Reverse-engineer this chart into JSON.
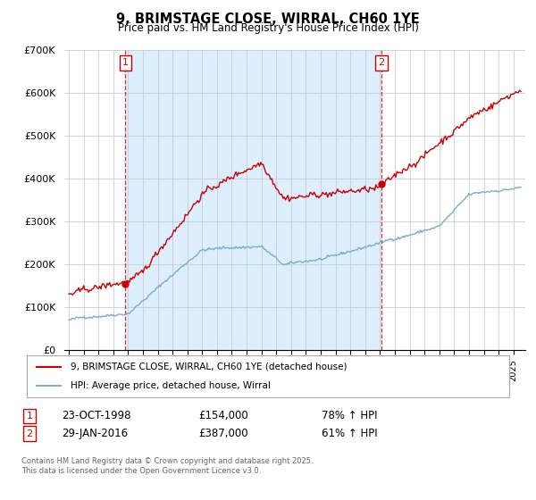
{
  "title": "9, BRIMSTAGE CLOSE, WIRRAL, CH60 1YE",
  "subtitle": "Price paid vs. HM Land Registry's House Price Index (HPI)",
  "red_label": "9, BRIMSTAGE CLOSE, WIRRAL, CH60 1YE (detached house)",
  "blue_label": "HPI: Average price, detached house, Wirral",
  "footnote": "Contains HM Land Registry data © Crown copyright and database right 2025.\nThis data is licensed under the Open Government Licence v3.0.",
  "transaction1_date": "23-OCT-1998",
  "transaction1_price": "£154,000",
  "transaction1_hpi": "78% ↑ HPI",
  "transaction1_year": 1998.82,
  "transaction2_date": "29-JAN-2016",
  "transaction2_price": "£387,000",
  "transaction2_hpi": "61% ↑ HPI",
  "transaction2_year": 2016.08,
  "ylim": [
    0,
    700000
  ],
  "yticks": [
    0,
    100000,
    200000,
    300000,
    400000,
    500000,
    600000,
    700000
  ],
  "ytick_labels": [
    "£0",
    "£100K",
    "£200K",
    "£300K",
    "£400K",
    "£500K",
    "£600K",
    "£700K"
  ],
  "red_color": "#cc0000",
  "blue_color": "#7aaccc",
  "shade_color": "#ddeeff",
  "vline_color": "#cc0000",
  "background_color": "#ffffff",
  "grid_color": "#cccccc"
}
